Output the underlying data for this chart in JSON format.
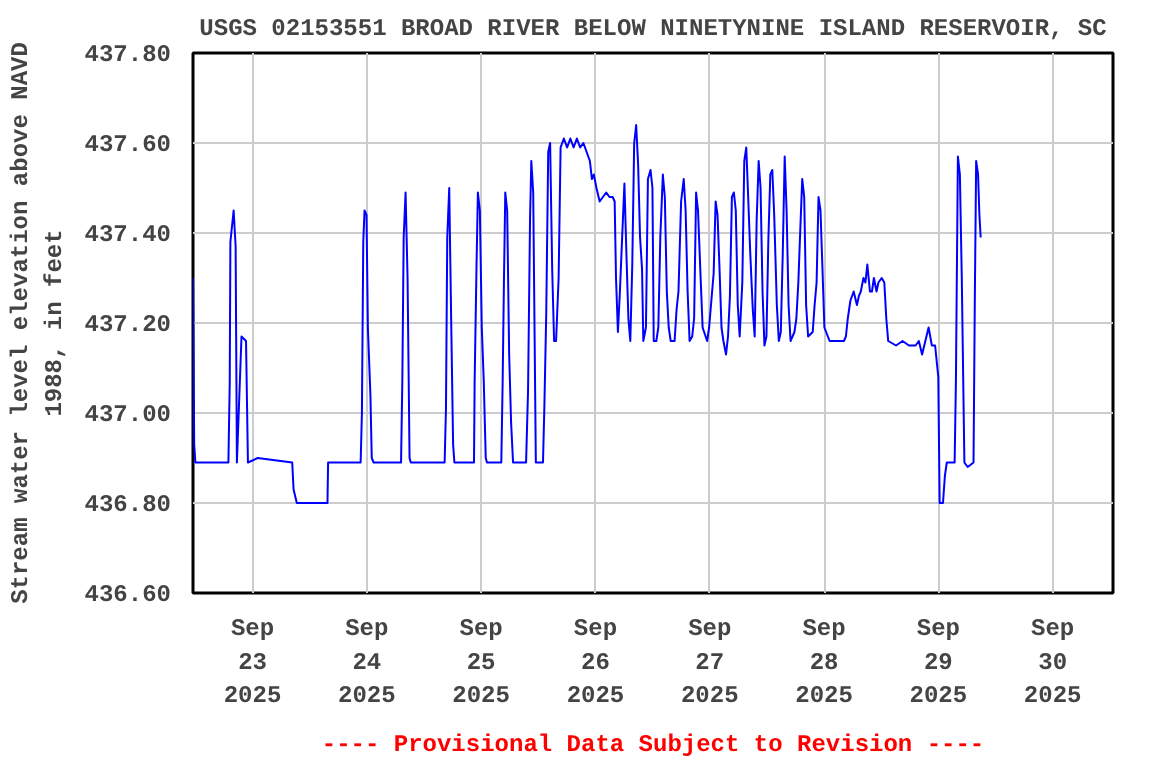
{
  "chart_data": {
    "type": "line",
    "title": "USGS 02153551 BROAD RIVER BELOW NINETYNINE ISLAND RESERVOIR, SC",
    "ylabel": "Stream water level elevation above NAVD\n1988, in feet",
    "annotations": [
      "---- Provisional Data Subject to Revision ----"
    ],
    "xlim": [
      "2025-09-22T11:30",
      "2025-09-30T12:40"
    ],
    "xticks": [
      {
        "value": "2025-09-23",
        "label": "Sep\n23\n2025"
      },
      {
        "value": "2025-09-24",
        "label": "Sep\n24\n2025"
      },
      {
        "value": "2025-09-25",
        "label": "Sep\n25\n2025"
      },
      {
        "value": "2025-09-26",
        "label": "Sep\n26\n2025"
      },
      {
        "value": "2025-09-27",
        "label": "Sep\n27\n2025"
      },
      {
        "value": "2025-09-28",
        "label": "Sep\n28\n2025"
      },
      {
        "value": "2025-09-29",
        "label": "Sep\n29\n2025"
      },
      {
        "value": "2025-09-30",
        "label": "Sep\n30\n2025"
      }
    ],
    "ylim": [
      436.6,
      437.8
    ],
    "yticks": [
      {
        "value": 436.6,
        "label": "436.60"
      },
      {
        "value": 436.8,
        "label": "436.80"
      },
      {
        "value": 437.0,
        "label": "437.00"
      },
      {
        "value": 437.2,
        "label": "437.20"
      },
      {
        "value": 437.4,
        "label": "437.40"
      },
      {
        "value": 437.6,
        "label": "437.60"
      },
      {
        "value": 437.8,
        "label": "437.80"
      }
    ],
    "grid": true,
    "marker": "none",
    "line_style": "solid",
    "series": [
      {
        "color": "#0000ff",
        "x": [
          "2025-09-22T11:30",
          "2025-09-22T11:45",
          "2025-09-22T12:00",
          "2025-09-22T18:56",
          "2025-09-22T19:13",
          "2025-09-22T19:21",
          "2025-09-22T20:02",
          "2025-09-22T20:27",
          "2025-09-22T20:43",
          "2025-09-22T21:41",
          "2025-09-22T22:38",
          "2025-09-22T23:02",
          "2025-09-23T01:05",
          "2025-09-23T08:20",
          "2025-09-23T08:37",
          "2025-09-23T09:18",
          "2025-09-23T15:44",
          "2025-09-23T15:52",
          "2025-09-23T22:42",
          "2025-09-23T22:58",
          "2025-09-23T23:15",
          "2025-09-23T23:31",
          "2025-09-23T23:56",
          "2025-09-24T00:13",
          "2025-09-24T00:45",
          "2025-09-24T01:02",
          "2025-09-24T01:26",
          "2025-09-24T07:11",
          "2025-09-24T07:27",
          "2025-09-24T07:44",
          "2025-09-24T08:08",
          "2025-09-24T08:33",
          "2025-09-24T08:58",
          "2025-09-24T09:14",
          "2025-09-24T16:20",
          "2025-09-24T16:37",
          "2025-09-24T16:53",
          "2025-09-24T17:18",
          "2025-09-24T17:43",
          "2025-09-24T18:07",
          "2025-09-24T18:23",
          "2025-09-24T22:30",
          "2025-09-24T22:38",
          "2025-09-24T23:02",
          "2025-09-24T23:19",
          "2025-09-24T23:44",
          "2025-09-25T00:08",
          "2025-09-25T00:33",
          "2025-09-25T00:58",
          "2025-09-25T01:14",
          "2025-09-25T04:14",
          "2025-09-25T04:31",
          "2025-09-25T04:47",
          "2025-09-25T05:04",
          "2025-09-25T05:28",
          "2025-09-25T05:53",
          "2025-09-25T06:17",
          "2025-09-25T06:42",
          "2025-09-25T09:26",
          "2025-09-25T09:51",
          "2025-09-25T10:16",
          "2025-09-25T10:32",
          "2025-09-25T10:56",
          "2025-09-25T11:13",
          "2025-09-25T11:29",
          "2025-09-25T12:59",
          "2025-09-25T13:16",
          "2025-09-25T13:40",
          "2025-09-25T14:05",
          "2025-09-25T14:29",
          "2025-09-25T14:55",
          "2025-09-25T15:19",
          "2025-09-25T15:44",
          "2025-09-25T16:16",
          "2025-09-25T16:41",
          "2025-09-25T17:22",
          "2025-09-25T18:03",
          "2025-09-25T18:44",
          "2025-09-25T19:25",
          "2025-09-25T20:06",
          "2025-09-25T20:47",
          "2025-09-25T21:28",
          "2025-09-25T22:09",
          "2025-09-25T22:50",
          "2025-09-25T23:15",
          "2025-09-25T23:40",
          "2025-09-26T00:13",
          "2025-09-26T00:53",
          "2025-09-26T01:34",
          "2025-09-26T02:16",
          "2025-09-26T02:56",
          "2025-09-26T03:37",
          "2025-09-26T04:02",
          "2025-09-26T04:19",
          "2025-09-26T04:43",
          "2025-09-26T05:08",
          "2025-09-26T05:41",
          "2025-09-26T06:05",
          "2025-09-26T06:29",
          "2025-09-26T06:55",
          "2025-09-26T07:19",
          "2025-09-26T07:44",
          "2025-09-26T08:08",
          "2025-09-26T08:33",
          "2025-09-26T08:58",
          "2025-09-26T09:22",
          "2025-09-26T09:47",
          "2025-09-26T10:03",
          "2025-09-26T10:36",
          "2025-09-26T11:01",
          "2025-09-26T11:34",
          "2025-09-26T11:58",
          "2025-09-26T12:14",
          "2025-09-26T12:47",
          "2025-09-26T13:12",
          "2025-09-26T13:37",
          "2025-09-26T14:09",
          "2025-09-26T14:34",
          "2025-09-26T14:59",
          "2025-09-26T15:23",
          "2025-09-26T15:48",
          "2025-09-26T16:37",
          "2025-09-26T17:02",
          "2025-09-26T17:26",
          "2025-09-26T17:59",
          "2025-09-26T18:32",
          "2025-09-26T18:56",
          "2025-09-26T19:21",
          "2025-09-26T19:46",
          "2025-09-26T20:19",
          "2025-09-26T20:43",
          "2025-09-26T21:08",
          "2025-09-26T21:32",
          "2025-09-26T22:05",
          "2025-09-26T22:30",
          "2025-09-26T23:27",
          "2025-09-26T23:52",
          "2025-09-27T00:25",
          "2025-09-27T00:49",
          "2025-09-27T01:14",
          "2025-09-27T01:38",
          "2025-09-27T02:03",
          "2025-09-27T02:28",
          "2025-09-27T02:52",
          "2025-09-27T03:25",
          "2025-09-27T03:50",
          "2025-09-27T04:14",
          "2025-09-27T04:39",
          "2025-09-27T05:04",
          "2025-09-27T05:28",
          "2025-09-27T05:53",
          "2025-09-27T06:17",
          "2025-09-27T06:50",
          "2025-09-27T07:15",
          "2025-09-27T07:40",
          "2025-09-27T08:04",
          "2025-09-27T08:29",
          "2025-09-27T09:02",
          "2025-09-27T09:26",
          "2025-09-27T09:51",
          "2025-09-27T10:16",
          "2025-09-27T10:40",
          "2025-09-27T11:05",
          "2025-09-27T11:29",
          "2025-09-27T11:54",
          "2025-09-27T12:19",
          "2025-09-27T12:43",
          "2025-09-27T13:08",
          "2025-09-27T13:32",
          "2025-09-27T14:05",
          "2025-09-27T14:30",
          "2025-09-27T14:55",
          "2025-09-27T15:19",
          "2025-09-27T15:44",
          "2025-09-27T16:08",
          "2025-09-27T16:33",
          "2025-09-27T16:58",
          "2025-09-27T17:47",
          "2025-09-27T18:11",
          "2025-09-27T18:36",
          "2025-09-27T19:01",
          "2025-09-27T19:25",
          "2025-09-27T19:50",
          "2025-09-27T20:14",
          "2025-09-27T20:39",
          "2025-09-27T21:37",
          "2025-09-27T22:01",
          "2025-09-27T22:26",
          "2025-09-27T22:50",
          "2025-09-27T23:15",
          "2025-09-27T23:40",
          "2025-09-28T00:04",
          "2025-09-28T01:10",
          "2025-09-28T02:48",
          "2025-09-28T04:10",
          "2025-09-28T04:35",
          "2025-09-28T04:59",
          "2025-09-28T05:32",
          "2025-09-28T06:13",
          "2025-09-28T06:54",
          "2025-09-28T07:19",
          "2025-09-28T07:43",
          "2025-09-28T08:16",
          "2025-09-28T08:41",
          "2025-09-28T09:05",
          "2025-09-28T09:38",
          "2025-09-28T10:03",
          "2025-09-28T10:28",
          "2025-09-28T11:01",
          "2025-09-28T11:25",
          "2025-09-28T12:06",
          "2025-09-28T12:39",
          "2025-09-28T13:04",
          "2025-09-28T13:28",
          "2025-09-28T15:07",
          "2025-09-28T16:29",
          "2025-09-28T17:50",
          "2025-09-28T19:13",
          "2025-09-28T19:54",
          "2025-09-28T20:35",
          "2025-09-28T21:16",
          "2025-09-28T21:57",
          "2025-09-28T22:38",
          "2025-09-28T23:19",
          "2025-09-28T23:59",
          "2025-09-29T00:16",
          "2025-09-29T00:58",
          "2025-09-29T01:22",
          "2025-09-29T01:46",
          "2025-09-29T03:25",
          "2025-09-29T03:41",
          "2025-09-29T04:06",
          "2025-09-29T04:31",
          "2025-09-29T04:55",
          "2025-09-29T05:28",
          "2025-09-29T06:09",
          "2025-09-29T07:23",
          "2025-09-29T07:39",
          "2025-09-29T07:56",
          "2025-09-29T08:20",
          "2025-09-29T08:37",
          "2025-09-29T08:53"
        ],
        "values": [
          437.3,
          436.93,
          436.89,
          436.89,
          437.07,
          437.38,
          437.45,
          437.37,
          436.89,
          437.17,
          437.16,
          436.89,
          436.9,
          436.89,
          436.83,
          436.8,
          436.8,
          436.89,
          436.89,
          437.0,
          437.38,
          437.45,
          437.44,
          437.19,
          437.04,
          436.9,
          436.89,
          436.89,
          437.07,
          437.39,
          437.49,
          437.3,
          436.9,
          436.89,
          436.89,
          437.01,
          437.39,
          437.5,
          437.2,
          436.93,
          436.89,
          436.89,
          437.07,
          437.33,
          437.49,
          437.45,
          437.19,
          437.07,
          436.9,
          436.89,
          436.89,
          437.07,
          437.29,
          437.49,
          437.45,
          437.13,
          436.98,
          436.89,
          436.89,
          437.05,
          437.43,
          437.56,
          437.49,
          437.18,
          436.89,
          436.89,
          437.01,
          437.22,
          437.58,
          437.6,
          437.32,
          437.16,
          437.16,
          437.3,
          437.59,
          437.61,
          437.59,
          437.61,
          437.59,
          437.61,
          437.59,
          437.6,
          437.58,
          437.56,
          437.52,
          437.53,
          437.5,
          437.47,
          437.48,
          437.49,
          437.48,
          437.48,
          437.47,
          437.3,
          437.18,
          437.27,
          437.41,
          437.51,
          437.36,
          437.21,
          437.16,
          437.33,
          437.6,
          437.64,
          437.55,
          437.39,
          437.32,
          437.16,
          437.19,
          437.52,
          437.54,
          437.5,
          437.16,
          437.16,
          437.19,
          437.39,
          437.53,
          437.48,
          437.27,
          437.19,
          437.16,
          437.16,
          437.23,
          437.27,
          437.47,
          437.52,
          437.45,
          437.27,
          437.16,
          437.17,
          437.21,
          437.49,
          437.45,
          437.3,
          437.19,
          437.16,
          437.19,
          437.26,
          437.31,
          437.47,
          437.44,
          437.32,
          437.19,
          437.16,
          437.13,
          437.17,
          437.26,
          437.48,
          437.49,
          437.45,
          437.24,
          437.17,
          437.29,
          437.56,
          437.59,
          437.48,
          437.36,
          437.23,
          437.17,
          437.43,
          437.56,
          437.5,
          437.27,
          437.15,
          437.17,
          437.39,
          437.53,
          437.54,
          437.44,
          437.24,
          437.16,
          437.18,
          437.35,
          437.57,
          437.45,
          437.24,
          437.16,
          437.18,
          437.21,
          437.29,
          437.41,
          437.52,
          437.48,
          437.24,
          437.17,
          437.18,
          437.24,
          437.29,
          437.48,
          437.45,
          437.32,
          437.19,
          437.16,
          437.16,
          437.16,
          437.17,
          437.21,
          437.25,
          437.27,
          437.24,
          437.26,
          437.27,
          437.3,
          437.29,
          437.33,
          437.27,
          437.27,
          437.3,
          437.27,
          437.29,
          437.3,
          437.29,
          437.21,
          437.16,
          437.15,
          437.16,
          437.15,
          437.15,
          437.16,
          437.13,
          437.16,
          437.19,
          437.15,
          437.15,
          437.08,
          436.8,
          436.8,
          436.86,
          436.89,
          436.89,
          437.07,
          437.57,
          437.53,
          437.3,
          436.89,
          436.88,
          436.89,
          437.25,
          437.56,
          437.53,
          437.44,
          437.39
        ]
      }
    ]
  }
}
